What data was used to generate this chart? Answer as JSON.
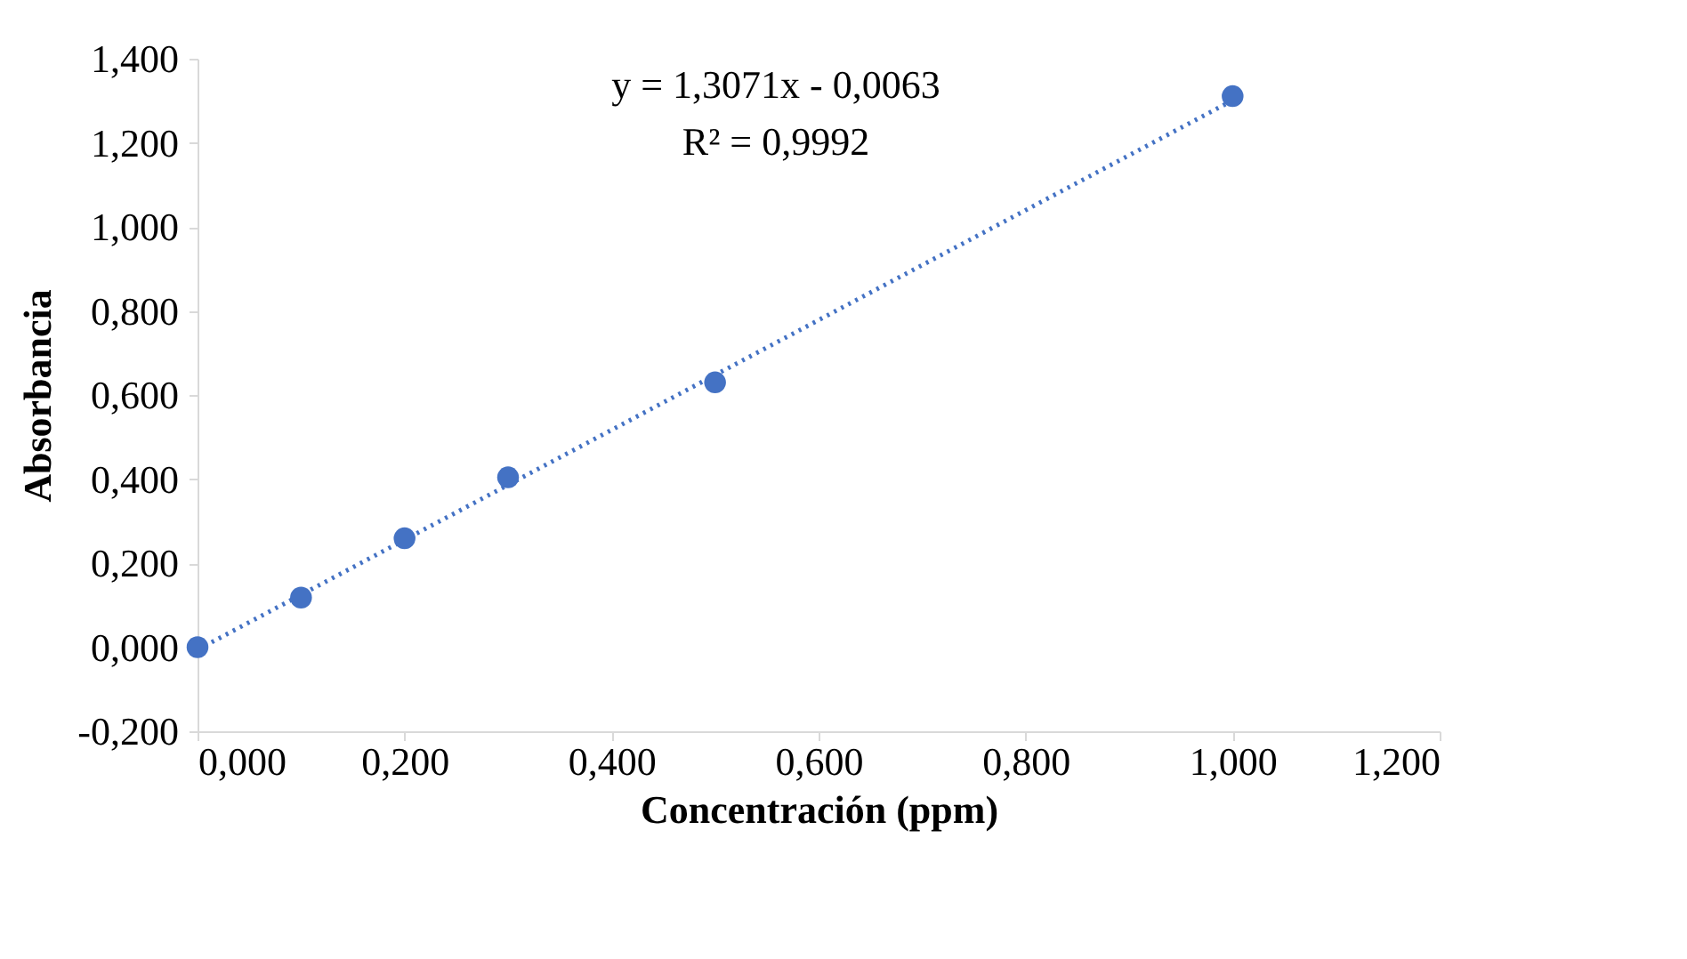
{
  "chart_data": {
    "type": "scatter",
    "xlabel": "Concentración (ppm)",
    "ylabel": "Absorbancia",
    "annotations": [
      "y = 1,3071x - 0,0063",
      "R² = 0,9992"
    ],
    "xlim": [
      0,
      1.2
    ],
    "ylim": [
      -0.2,
      1.4
    ],
    "xticks": [
      {
        "value": 0,
        "label": "0,000"
      },
      {
        "value": 0.2,
        "label": "0,200"
      },
      {
        "value": 0.4,
        "label": "0,400"
      },
      {
        "value": 0.6,
        "label": "0,600"
      },
      {
        "value": 0.8,
        "label": "0,800"
      },
      {
        "value": 1,
        "label": "1,000"
      },
      {
        "value": 1.2,
        "label": "1,200"
      }
    ],
    "yticks": [
      {
        "value": -0.2,
        "label": "-0,200"
      },
      {
        "value": 0,
        "label": "0,000"
      },
      {
        "value": 0.2,
        "label": "0,200"
      },
      {
        "value": 0.4,
        "label": "0,400"
      },
      {
        "value": 0.6,
        "label": "0,600"
      },
      {
        "value": 0.8,
        "label": "0,800"
      },
      {
        "value": 1,
        "label": "1,000"
      },
      {
        "value": 1.2,
        "label": "1,200"
      },
      {
        "value": 1.4,
        "label": "1,400"
      }
    ],
    "grid": false,
    "series": [
      {
        "color": "#4472c4",
        "marker": "circle",
        "x": [
          0,
          0.1,
          0.2,
          0.3,
          0.5,
          1.0
        ],
        "values": [
          0,
          0.118,
          0.259,
          0.404,
          0.63,
          1.311
        ]
      },
      {
        "type": "line",
        "color": "#4472c4",
        "line_style": "dotted",
        "marker": "none",
        "x": [
          0,
          1.0
        ],
        "values": [
          -0.006,
          1.301
        ]
      }
    ]
  }
}
